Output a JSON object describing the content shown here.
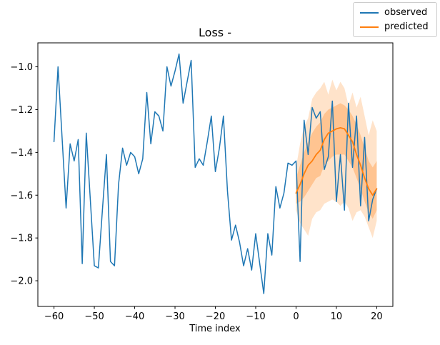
{
  "legend": {
    "entries": [
      {
        "label": "observed",
        "color": "#1f77b4"
      },
      {
        "label": "predicted",
        "color": "#ff7f0e"
      }
    ]
  },
  "chart_data": {
    "type": "line",
    "title": "Loss -",
    "xlabel": "Time index",
    "ylabel": "",
    "grid": false,
    "legend_position": "upper right of figure",
    "xlim": [
      -64,
      24
    ],
    "ylim": [
      -2.12,
      -0.888
    ],
    "x_ticks": [
      -60,
      -50,
      -40,
      -30,
      -20,
      -10,
      0,
      10,
      20
    ],
    "y_ticks": [
      -1.0,
      -1.2,
      -1.4,
      -1.6,
      -1.8,
      -2.0
    ],
    "axis_color": "#000000",
    "series": [
      {
        "name": "observed",
        "color": "#1f77b4",
        "line_width": 1.5,
        "x_start": -60,
        "x_step": 1,
        "values": [
          -1.35,
          -1.0,
          -1.33,
          -1.66,
          -1.36,
          -1.44,
          -1.34,
          -1.92,
          -1.31,
          -1.62,
          -1.93,
          -1.94,
          -1.67,
          -1.41,
          -1.91,
          -1.93,
          -1.55,
          -1.38,
          -1.46,
          -1.4,
          -1.42,
          -1.5,
          -1.43,
          -1.12,
          -1.36,
          -1.21,
          -1.23,
          -1.3,
          -1.0,
          -1.09,
          -1.02,
          -0.94,
          -1.17,
          -1.07,
          -0.97,
          -1.47,
          -1.43,
          -1.46,
          -1.35,
          -1.23,
          -1.49,
          -1.38,
          -1.23,
          -1.58,
          -1.81,
          -1.74,
          -1.82,
          -1.93,
          -1.85,
          -1.95,
          -1.78,
          -1.92,
          -2.06,
          -1.78,
          -1.88,
          -1.56,
          -1.66,
          -1.59,
          -1.45,
          -1.46,
          -1.44,
          -1.91,
          -1.25,
          -1.41,
          -1.19,
          -1.24,
          -1.21,
          -1.48,
          -1.42,
          -1.16,
          -1.63,
          -1.41,
          -1.67,
          -1.17,
          -1.47,
          -1.23,
          -1.65,
          -1.33,
          -1.72,
          -1.62,
          -1.57
        ]
      },
      {
        "name": "predicted",
        "color": "#ff7f0e",
        "line_width": 1.8,
        "x_start": 0,
        "x_step": 1,
        "values": [
          -1.59,
          -1.55,
          -1.5,
          -1.46,
          -1.44,
          -1.41,
          -1.39,
          -1.34,
          -1.31,
          -1.3,
          -1.29,
          -1.285,
          -1.29,
          -1.32,
          -1.35,
          -1.41,
          -1.46,
          -1.52,
          -1.57,
          -1.6,
          -1.57
        ],
        "band_outer": {
          "opacity": 0.22,
          "hi": [
            -1.47,
            -1.36,
            -1.28,
            -1.24,
            -1.15,
            -1.12,
            -1.1,
            -1.07,
            -1.13,
            -1.06,
            -1.11,
            -1.07,
            -1.1,
            -1.18,
            -1.12,
            -1.19,
            -1.14,
            -1.23,
            -1.32,
            -1.25,
            -1.3
          ],
          "lo": [
            -1.67,
            -1.73,
            -1.76,
            -1.79,
            -1.71,
            -1.68,
            -1.67,
            -1.64,
            -1.63,
            -1.62,
            -1.63,
            -1.65,
            -1.63,
            -1.66,
            -1.72,
            -1.68,
            -1.67,
            -1.7,
            -1.75,
            -1.8,
            -1.72
          ]
        },
        "band_inner": {
          "opacity": 0.3,
          "hi": [
            -1.52,
            -1.46,
            -1.4,
            -1.35,
            -1.31,
            -1.28,
            -1.26,
            -1.22,
            -1.2,
            -1.19,
            -1.18,
            -1.17,
            -1.18,
            -1.2,
            -1.23,
            -1.27,
            -1.32,
            -1.38,
            -1.44,
            -1.47,
            -1.44
          ],
          "lo": [
            -1.64,
            -1.63,
            -1.61,
            -1.58,
            -1.55,
            -1.52,
            -1.51,
            -1.46,
            -1.44,
            -1.42,
            -1.41,
            -1.41,
            -1.41,
            -1.44,
            -1.47,
            -1.52,
            -1.57,
            -1.63,
            -1.68,
            -1.71,
            -1.67
          ]
        }
      }
    ]
  }
}
